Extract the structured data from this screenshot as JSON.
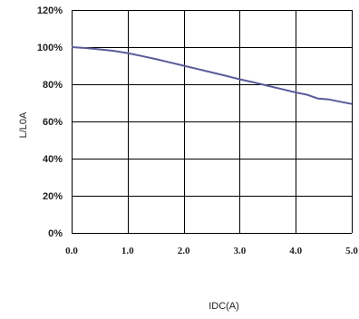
{
  "chart_data": {
    "type": "line",
    "xlabel": "IDC(A)",
    "ylabel": "L/L0A",
    "xlim": [
      0,
      5
    ],
    "ylim": [
      0,
      120
    ],
    "x_ticks": [
      "0.0",
      "1.0",
      "2.0",
      "3.0",
      "4.0",
      "5.0"
    ],
    "y_ticks": [
      "0%",
      "20%",
      "40%",
      "60%",
      "80%",
      "100%",
      "120%"
    ],
    "grid": true,
    "line_color": "#5b5b9a",
    "series": [
      {
        "x": [
          0.0,
          0.25,
          0.5,
          0.75,
          1.0,
          1.25,
          1.5,
          1.75,
          2.0,
          2.25,
          2.5,
          2.75,
          3.0,
          3.25,
          3.5,
          3.75,
          4.0,
          4.2,
          4.4,
          4.6,
          4.8,
          5.0
        ],
        "y": [
          100,
          99.5,
          98.8,
          98.0,
          96.8,
          95.2,
          93.6,
          91.8,
          90.0,
          88.2,
          86.4,
          84.6,
          82.7,
          81.0,
          79.2,
          77.4,
          75.6,
          74.4,
          72.3,
          71.8,
          70.6,
          69.4
        ]
      }
    ]
  }
}
